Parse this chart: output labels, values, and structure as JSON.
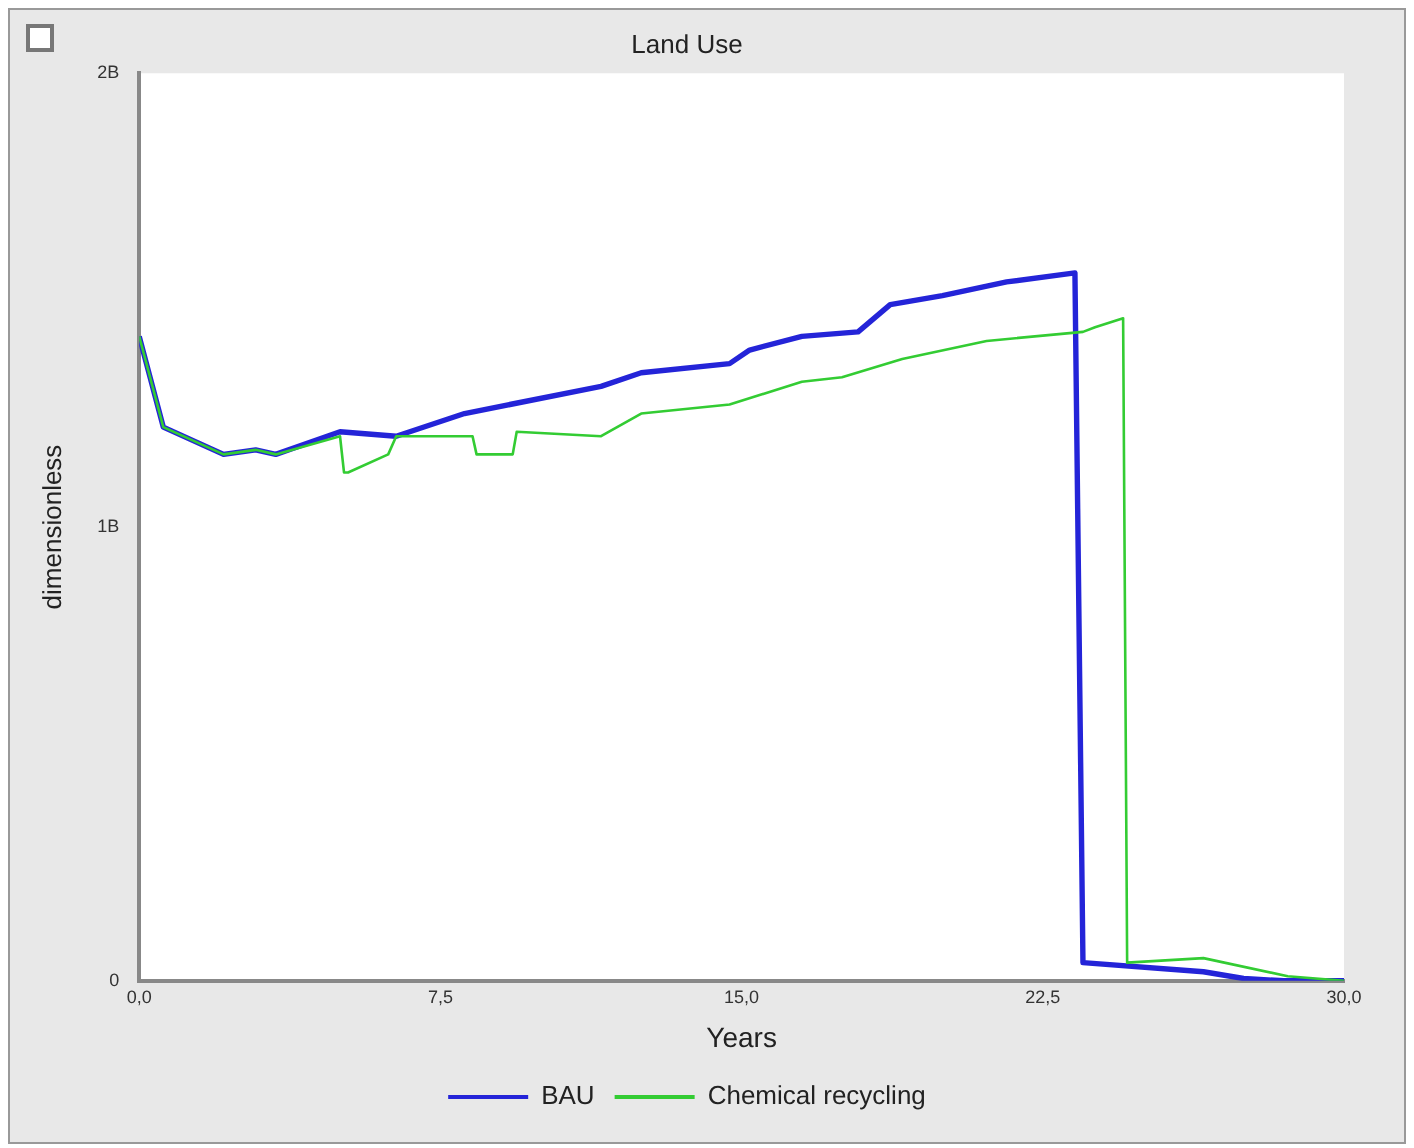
{
  "chart_data": {
    "type": "line",
    "title": "Land Use",
    "xlabel": "Years",
    "ylabel": "dimensionless",
    "xlim": [
      0,
      30
    ],
    "xticks": [
      {
        "value": 0,
        "label": "0,0"
      },
      {
        "value": 7.5,
        "label": "7,5"
      },
      {
        "value": 15,
        "label": "15,0"
      },
      {
        "value": 22.5,
        "label": "22,5"
      },
      {
        "value": 30,
        "label": "30,0"
      }
    ],
    "ylim": [
      0,
      2000000000
    ],
    "yticks": [
      0,
      {
        "value": 1000000000,
        "label": "1B"
      },
      {
        "value": 2000000000,
        "label": "2B"
      }
    ],
    "grid": false,
    "legend": "bottom",
    "marker": "none",
    "line_style": "solid",
    "series": [
      {
        "name": "BAU",
        "color": "#2424d8",
        "x": [
          0,
          0.6,
          2.1,
          2.9,
          3.4,
          5.0,
          6.4,
          8.1,
          11.5,
          12.5,
          14.7,
          15.2,
          16.5,
          17.9,
          18.7,
          20.0,
          21.6,
          23.3,
          23.5,
          26.5,
          27.5,
          28.5,
          30
        ],
        "values": [
          1420000000,
          1220000000,
          1160000000,
          1170000000,
          1160000000,
          1210000000,
          1200000000,
          1250000000,
          1310000000,
          1340000000,
          1360000000,
          1390000000,
          1420000000,
          1430000000,
          1490000000,
          1510000000,
          1540000000,
          1560000000,
          40000000,
          20000000,
          5000000,
          0,
          0
        ]
      },
      {
        "name": "Chemical recycling",
        "color": "#33cc33",
        "x": [
          0,
          0.6,
          2.1,
          2.9,
          3.4,
          5.0,
          5.1,
          5.2,
          6.2,
          6.4,
          8.3,
          8.4,
          9.3,
          9.4,
          11.5,
          12.5,
          14.7,
          16.5,
          17.5,
          19.0,
          21.1,
          23.5,
          23.8,
          24.5,
          24.6,
          26.5,
          28.6,
          30
        ],
        "values": [
          1420000000,
          1220000000,
          1160000000,
          1170000000,
          1160000000,
          1200000000,
          1120000000,
          1120000000,
          1160000000,
          1200000000,
          1200000000,
          1160000000,
          1160000000,
          1210000000,
          1200000000,
          1250000000,
          1270000000,
          1320000000,
          1330000000,
          1370000000,
          1410000000,
          1430000000,
          1440000000,
          1460000000,
          40000000,
          50000000,
          10000000,
          0
        ]
      }
    ]
  }
}
